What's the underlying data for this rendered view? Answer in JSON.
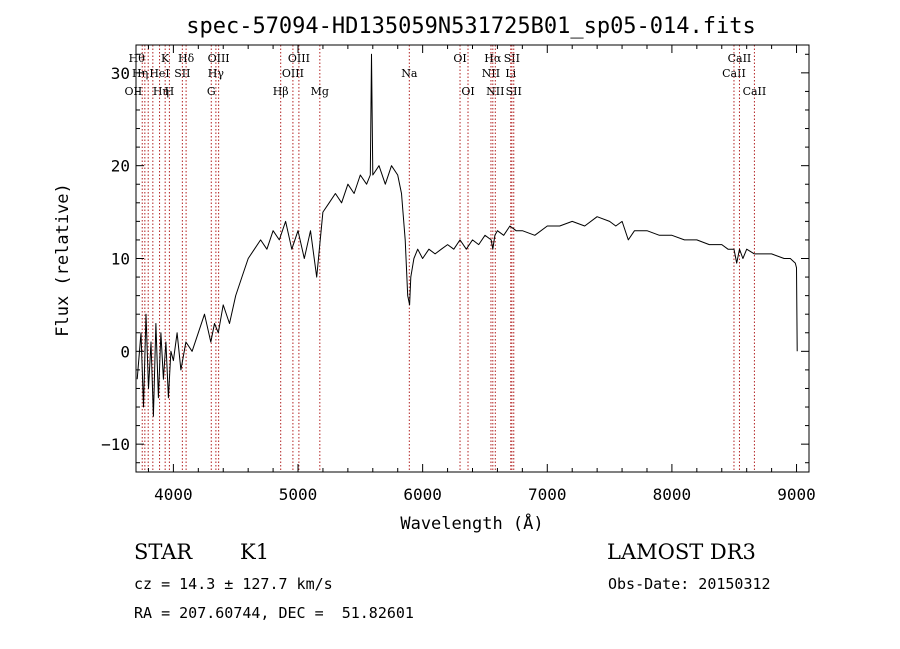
{
  "chart_data": {
    "type": "line",
    "title": "spec-57094-HD135059N531725B01_sp05-014.fits",
    "xlabel": "Wavelength (Å)",
    "ylabel": "Flux (relative)",
    "xlim": [
      3700,
      9100
    ],
    "ylim": [
      -13,
      33
    ],
    "xticks": [
      4000,
      5000,
      6000,
      7000,
      8000,
      9000
    ],
    "yticks": [
      -10,
      0,
      10,
      20,
      30
    ],
    "grid": false,
    "line_color": "#000000",
    "marker_color": "#b22222",
    "series": [
      {
        "x": [
          3710,
          3740,
          3760,
          3780,
          3800,
          3820,
          3840,
          3860,
          3880,
          3900,
          3920,
          3940,
          3960,
          3980,
          4000,
          4030,
          4060,
          4100,
          4150,
          4200,
          4250,
          4300,
          4330,
          4360,
          4400,
          4450,
          4500,
          4550,
          4600,
          4650,
          4700,
          4750,
          4800,
          4850,
          4900,
          4950,
          5000,
          5050,
          5100,
          5150,
          5200,
          5250,
          5300,
          5350,
          5400,
          5450,
          5500,
          5550,
          5580,
          5590,
          5600,
          5650,
          5700,
          5750,
          5800,
          5830,
          5860,
          5880,
          5895,
          5905,
          5930,
          5960,
          6000,
          6050,
          6100,
          6150,
          6200,
          6250,
          6300,
          6350,
          6400,
          6450,
          6500,
          6550,
          6563,
          6580,
          6600,
          6650,
          6700,
          6750,
          6800,
          6900,
          7000,
          7100,
          7200,
          7300,
          7400,
          7500,
          7550,
          7600,
          7650,
          7700,
          7800,
          7900,
          8000,
          8100,
          8200,
          8300,
          8400,
          8450,
          8498,
          8520,
          8542,
          8570,
          8600,
          8662,
          8700,
          8800,
          8900,
          8950,
          8990,
          9000,
          9005
        ],
        "y": [
          -3,
          2,
          -6,
          4,
          -4,
          1,
          -7,
          3,
          -5,
          2,
          -3,
          1,
          -5,
          0,
          -1,
          2,
          -2,
          1,
          0,
          2,
          4,
          1,
          3,
          2,
          5,
          3,
          6,
          8,
          10,
          11,
          12,
          11,
          13,
          12,
          14,
          11,
          13,
          10,
          13,
          8,
          15,
          16,
          17,
          16,
          18,
          17,
          19,
          18,
          19,
          32,
          19,
          20,
          18,
          20,
          19,
          17,
          12,
          6,
          5,
          8,
          10,
          11,
          10,
          11,
          10.5,
          11,
          11.5,
          11,
          12,
          11,
          12,
          11.5,
          12.5,
          12,
          11,
          12.5,
          13,
          12.5,
          13.5,
          13,
          13,
          12.5,
          13.5,
          13.5,
          14,
          13.5,
          14.5,
          14,
          13.5,
          14,
          12,
          13,
          13,
          12.5,
          12.5,
          12,
          12,
          11.5,
          11.5,
          11,
          11,
          9.5,
          11,
          10,
          11,
          10.5,
          10.5,
          10.5,
          10,
          10,
          9.5,
          9,
          0
        ]
      }
    ],
    "line_markers": [
      {
        "w": 3750,
        "label": "OII",
        "row": 3,
        "anchor": "end"
      },
      {
        "w": 3771,
        "label": "Hθ",
        "row": 1,
        "anchor": "end"
      },
      {
        "w": 3798,
        "label": "Hη",
        "row": 2,
        "anchor": "end"
      },
      {
        "w": 3835,
        "label": "Hη",
        "row": 3,
        "anchor": "start"
      },
      {
        "w": 3889,
        "label": "HeI",
        "row": 2,
        "anchor": "middle"
      },
      {
        "w": 3934,
        "label": "K",
        "row": 1,
        "anchor": "middle"
      },
      {
        "w": 3968,
        "label": "H",
        "row": 3,
        "anchor": "middle"
      },
      {
        "w": 4072,
        "label": "SII",
        "row": 2,
        "anchor": "middle"
      },
      {
        "w": 4102,
        "label": "Hδ",
        "row": 1,
        "anchor": "middle"
      },
      {
        "w": 4304,
        "label": "G",
        "row": 3,
        "anchor": "middle"
      },
      {
        "w": 4341,
        "label": "Hγ",
        "row": 2,
        "anchor": "middle"
      },
      {
        "w": 4363,
        "label": "OIII",
        "row": 1,
        "anchor": "middle"
      },
      {
        "w": 4861,
        "label": "Hβ",
        "row": 3,
        "anchor": "middle"
      },
      {
        "w": 4959,
        "label": "OIII",
        "row": 2,
        "anchor": "middle"
      },
      {
        "w": 5007,
        "label": "OIII",
        "row": 1,
        "anchor": "middle"
      },
      {
        "w": 5175,
        "label": "Mg",
        "row": 3,
        "anchor": "middle"
      },
      {
        "w": 5893,
        "label": "Na",
        "row": 2,
        "anchor": "middle"
      },
      {
        "w": 6300,
        "label": "OI",
        "row": 1,
        "anchor": "middle"
      },
      {
        "w": 6364,
        "label": "OI",
        "row": 3,
        "anchor": "middle"
      },
      {
        "w": 6548,
        "label": "NII",
        "row": 2,
        "anchor": "middle"
      },
      {
        "w": 6563,
        "label": "Hα",
        "row": 1,
        "anchor": "middle"
      },
      {
        "w": 6583,
        "label": "NII",
        "row": 3,
        "anchor": "middle"
      },
      {
        "w": 6707,
        "label": "Li",
        "row": 2,
        "anchor": "middle"
      },
      {
        "w": 6716,
        "label": "SII",
        "row": 1,
        "anchor": "middle"
      },
      {
        "w": 6731,
        "label": "SII",
        "row": 3,
        "anchor": "middle"
      },
      {
        "w": 8498,
        "label": "CaII",
        "row": 2,
        "anchor": "middle"
      },
      {
        "w": 8542,
        "label": "CaII",
        "row": 1,
        "anchor": "middle"
      },
      {
        "w": 8662,
        "label": "CaII",
        "row": 3,
        "anchor": "middle"
      }
    ]
  },
  "info": {
    "object_class": "STAR",
    "subclass": "K1",
    "survey": "LAMOST DR3",
    "cz": "cz = 14.3 ± 127.7 km/s",
    "obs_date": "Obs-Date: 20150312",
    "coords": "RA = 207.60744, DEC =  51.82601"
  }
}
